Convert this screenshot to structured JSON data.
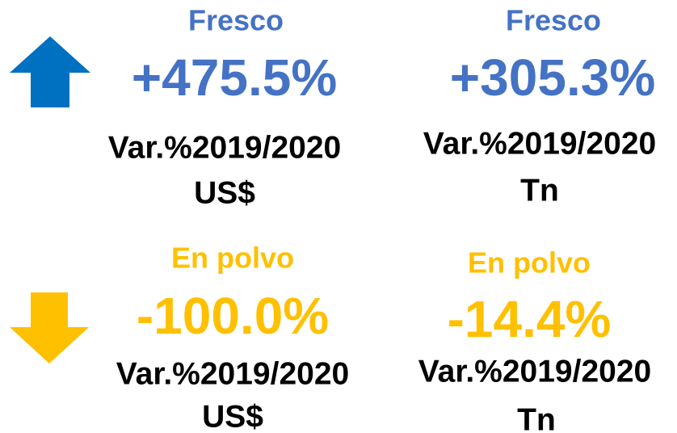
{
  "rows": [
    {
      "cells": [
        {
          "product": "Fresco",
          "change": "+475.5%",
          "caption": "Var.%2019/2020",
          "unit": "US$"
        },
        {
          "product": "Fresco",
          "change": "+305.3%",
          "caption": "Var.%2019/2020",
          "unit": "Tn"
        }
      ]
    },
    {
      "cells": [
        {
          "product": "En polvo",
          "change": "-100.0%",
          "caption": "Var.%2019/2020",
          "unit": "US$"
        },
        {
          "product": "En polvo",
          "change": "-14.4%",
          "caption": "Var.%2019/2020",
          "unit": "Tn"
        }
      ]
    }
  ]
}
